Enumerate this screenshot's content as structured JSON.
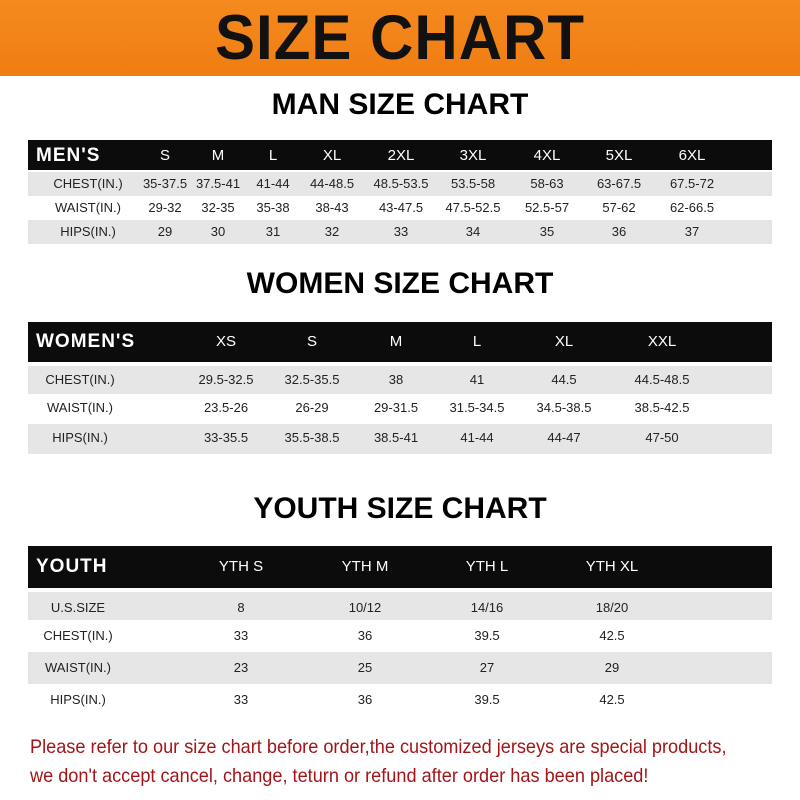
{
  "banner": {
    "title": "SIZE CHART",
    "color": "#f0821a"
  },
  "men": {
    "title": "MAN SIZE CHART",
    "header": [
      "MEN'S",
      "S",
      "M",
      "L",
      "XL",
      "2XL",
      "3XL",
      "4XL",
      "5XL",
      "6XL"
    ],
    "rows": [
      [
        "CHEST(IN.)",
        "35-37.5",
        "37.5-41",
        "41-44",
        "44-48.5",
        "48.5-53.5",
        "53.5-58",
        "58-63",
        "63-67.5",
        "67.5-72"
      ],
      [
        "WAIST(IN.)",
        "29-32",
        "32-35",
        "35-38",
        "38-43",
        "43-47.5",
        "47.5-52.5",
        "52.5-57",
        "57-62",
        "62-66.5"
      ],
      [
        "HIPS(IN.)",
        "29",
        "30",
        "31",
        "32",
        "33",
        "34",
        "35",
        "36",
        "37"
      ]
    ]
  },
  "women": {
    "title": "WOMEN SIZE CHART",
    "header": [
      "WOMEN'S",
      "XS",
      "S",
      "M",
      "L",
      "XL",
      "XXL"
    ],
    "rows": [
      [
        "CHEST(IN.)",
        "29.5-32.5",
        "32.5-35.5",
        "38",
        "41",
        "44.5",
        "44.5-48.5"
      ],
      [
        "WAIST(IN.)",
        "23.5-26",
        "26-29",
        "29-31.5",
        "31.5-34.5",
        "34.5-38.5",
        "38.5-42.5"
      ],
      [
        "HIPS(IN.)",
        "33-35.5",
        "35.5-38.5",
        "38.5-41",
        "41-44",
        "44-47",
        "47-50"
      ]
    ]
  },
  "youth": {
    "title": "YOUTH SIZE CHART",
    "header": [
      "YOUTH",
      "YTH S",
      "YTH M",
      "YTH L",
      "YTH XL"
    ],
    "rows": [
      [
        "U.S.SIZE",
        "8",
        "10/12",
        "14/16",
        "18/20"
      ],
      [
        "CHEST(IN.)",
        "33",
        "36",
        "39.5",
        "42.5"
      ],
      [
        "WAIST(IN.)",
        "23",
        "25",
        "27",
        "29"
      ],
      [
        "HIPS(IN.)",
        "33",
        "36",
        "39.5",
        "42.5"
      ]
    ]
  },
  "notice": {
    "line1": "Please refer to our size chart before order,the customized jerseys are special products,",
    "line2": "we don't accept cancel, change, teturn or refund after order has been placed!",
    "color": "#a31518"
  }
}
